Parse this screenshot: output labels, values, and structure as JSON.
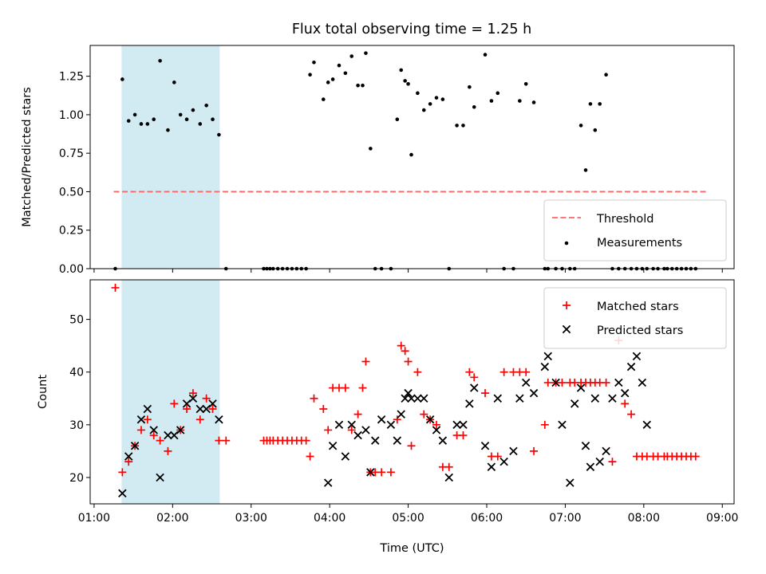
{
  "figure": {
    "title": "Flux total observing time = 1.25 h"
  },
  "chart_data": [
    {
      "type": "scatter",
      "panel": "top",
      "ylabel": "Matched/Predicted stars",
      "xlim": [
        -5,
        815
      ],
      "ylim": [
        0,
        1.45
      ],
      "yticks": [
        0.0,
        0.25,
        0.5,
        0.75,
        1.0,
        1.25
      ],
      "ytick_labels": [
        "0.00",
        "0.25",
        "0.50",
        "0.75",
        "1.00",
        "1.25"
      ],
      "shaded_span": {
        "x": [
          35,
          160
        ],
        "color": "#add8e6"
      },
      "grid": false,
      "legend_position": "lower-right",
      "series": [
        {
          "name": "Threshold",
          "kind": "line",
          "style": "dashed",
          "color": "#ff6666",
          "x": [
            25,
            779
          ],
          "y": [
            0.5,
            0.5
          ]
        },
        {
          "name": "Measurements",
          "kind": "points",
          "color": "#000000",
          "x": [
            27,
            36,
            44,
            52,
            60,
            68,
            76,
            84,
            94,
            102,
            110,
            118,
            126,
            135,
            143,
            151,
            159,
            168,
            216,
            220,
            224,
            228,
            234,
            240,
            246,
            252,
            258,
            264,
            270,
            275,
            280,
            292,
            298,
            304,
            312,
            320,
            328,
            336,
            342,
            346,
            352,
            358,
            366,
            378,
            386,
            391,
            396,
            400,
            404,
            412,
            420,
            428,
            436,
            444,
            452,
            462,
            470,
            478,
            484,
            498,
            506,
            514,
            522,
            534,
            542,
            550,
            560,
            574,
            578,
            588,
            596,
            606,
            612,
            620,
            626,
            632,
            638,
            644,
            652,
            660,
            668,
            676,
            684,
            691,
            698,
            704,
            712,
            718,
            726,
            730,
            736,
            742,
            748,
            754,
            760,
            766
          ],
          "y": [
            0,
            1.23,
            0.96,
            1.0,
            0.94,
            0.94,
            0.97,
            1.35,
            0.9,
            1.21,
            1.0,
            0.97,
            1.03,
            0.94,
            1.06,
            0.97,
            0.87,
            0,
            0,
            0,
            0,
            0,
            0,
            0,
            0,
            0,
            0,
            0,
            0,
            1.26,
            1.34,
            1.1,
            1.21,
            1.23,
            1.32,
            1.27,
            1.38,
            1.19,
            1.19,
            1.4,
            0.78,
            0,
            0,
            0,
            0.97,
            1.29,
            1.22,
            1.2,
            0.74,
            1.14,
            1.03,
            1.07,
            1.11,
            1.1,
            0,
            0.93,
            0.93,
            1.18,
            1.05,
            1.39,
            1.09,
            1.14,
            0,
            0,
            1.09,
            1.2,
            1.08,
            0,
            0,
            0,
            0,
            0,
            0,
            0.93,
            0.64,
            1.07,
            0.9,
            1.07,
            1.26,
            0,
            0,
            0,
            0,
            0,
            0,
            0,
            0,
            0,
            0,
            0,
            0,
            0,
            0,
            0,
            0,
            0
          ]
        }
      ]
    },
    {
      "type": "scatter",
      "panel": "bottom",
      "xlabel": "Time (UTC)",
      "ylabel": "Count",
      "xlim": [
        -5,
        815
      ],
      "ylim": [
        15,
        57.5
      ],
      "yticks": [
        20,
        30,
        40,
        50
      ],
      "ytick_labels": [
        "20",
        "30",
        "40",
        "50"
      ],
      "xticks": [
        0,
        100,
        200,
        300,
        400,
        500,
        600,
        700,
        800
      ],
      "xtick_labels": [
        "01:00",
        "02:00",
        "03:00",
        "04:00",
        "05:00",
        "06:00",
        "07:00",
        "08:00",
        "09:00"
      ],
      "shaded_span": {
        "x": [
          35,
          160
        ],
        "color": "#add8e6"
      },
      "grid": false,
      "legend_position": "upper-right",
      "series": [
        {
          "name": "Matched stars",
          "kind": "plus",
          "color": "#ff0000",
          "x": [
            27,
            36,
            44,
            52,
            60,
            68,
            76,
            84,
            94,
            102,
            110,
            118,
            126,
            135,
            143,
            151,
            159,
            168,
            216,
            220,
            224,
            228,
            234,
            240,
            246,
            252,
            258,
            264,
            270,
            275,
            280,
            292,
            298,
            304,
            312,
            320,
            328,
            336,
            342,
            346,
            352,
            358,
            366,
            378,
            386,
            391,
            396,
            400,
            404,
            412,
            420,
            428,
            436,
            444,
            452,
            462,
            470,
            478,
            484,
            498,
            506,
            514,
            522,
            534,
            542,
            550,
            560,
            574,
            578,
            588,
            596,
            606,
            612,
            620,
            626,
            632,
            638,
            644,
            652,
            660,
            668,
            676,
            684,
            691,
            698,
            704,
            712,
            718,
            726,
            730,
            736,
            742,
            748,
            754,
            760,
            766
          ],
          "y": [
            56,
            21,
            23,
            26,
            29,
            31,
            28,
            27,
            25,
            34,
            29,
            33,
            36,
            31,
            35,
            33,
            27,
            27,
            27,
            27,
            27,
            27,
            27,
            27,
            27,
            27,
            27,
            27,
            27,
            24,
            35,
            33,
            29,
            37,
            37,
            37,
            29,
            32,
            37,
            42,
            21,
            21,
            21,
            21,
            31,
            45,
            44,
            42,
            26,
            40,
            32,
            31,
            30,
            22,
            22,
            28,
            28,
            40,
            39,
            36,
            24,
            24,
            40,
            40,
            40,
            40,
            25,
            30,
            38,
            38,
            38,
            38,
            38,
            38,
            38,
            38,
            38,
            38,
            38,
            23,
            46,
            34,
            32,
            24,
            24,
            24,
            24,
            24,
            24,
            24,
            24,
            24,
            24,
            24,
            24,
            24
          ]
        },
        {
          "name": "Predicted stars",
          "kind": "cross",
          "color": "#000000",
          "x": [
            36,
            44,
            52,
            60,
            68,
            76,
            84,
            94,
            102,
            110,
            118,
            126,
            135,
            143,
            151,
            159,
            298,
            304,
            312,
            320,
            328,
            336,
            346,
            352,
            358,
            366,
            378,
            386,
            391,
            396,
            400,
            404,
            412,
            420,
            428,
            436,
            444,
            452,
            462,
            470,
            478,
            484,
            498,
            506,
            514,
            522,
            534,
            542,
            550,
            560,
            574,
            578,
            588,
            596,
            606,
            612,
            620,
            626,
            632,
            638,
            644,
            652,
            660,
            668,
            676,
            684,
            691,
            698,
            704
          ],
          "y": [
            17,
            24,
            26,
            31,
            33,
            29,
            20,
            28,
            28,
            29,
            34,
            35,
            33,
            33,
            34,
            31,
            19,
            26,
            30,
            24,
            30,
            28,
            29,
            21,
            27,
            31,
            30,
            27,
            32,
            35,
            36,
            35,
            35,
            35,
            31,
            29,
            27,
            20,
            30,
            30,
            34,
            37,
            26,
            22,
            35,
            23,
            25,
            35,
            38,
            36,
            41,
            43,
            38,
            30,
            19,
            34,
            37,
            26,
            22,
            35,
            23,
            25,
            35,
            38,
            36,
            41,
            43,
            38,
            30
          ]
        }
      ]
    }
  ]
}
